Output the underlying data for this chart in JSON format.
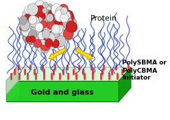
{
  "bg_color": "#ffffff",
  "protein_label": "Protein",
  "label1": "PolySBMA or",
  "label2": "PolyCBMA",
  "label3": "Initiator",
  "label4": "Gold and glass",
  "platform_fill": "#22cc22",
  "platform_edge": "#006600",
  "surface_fill": "#d8f5d8",
  "surface_edge": "#88bb88",
  "right_face_fill": "#119911",
  "left_face_fill": "#bbddbb",
  "arrow_color": "#ffdd00",
  "arrow_edge": "#cc9900",
  "polymer_color": "#2244cc",
  "initiator_color": "#ee3333",
  "num_polymers": 28
}
